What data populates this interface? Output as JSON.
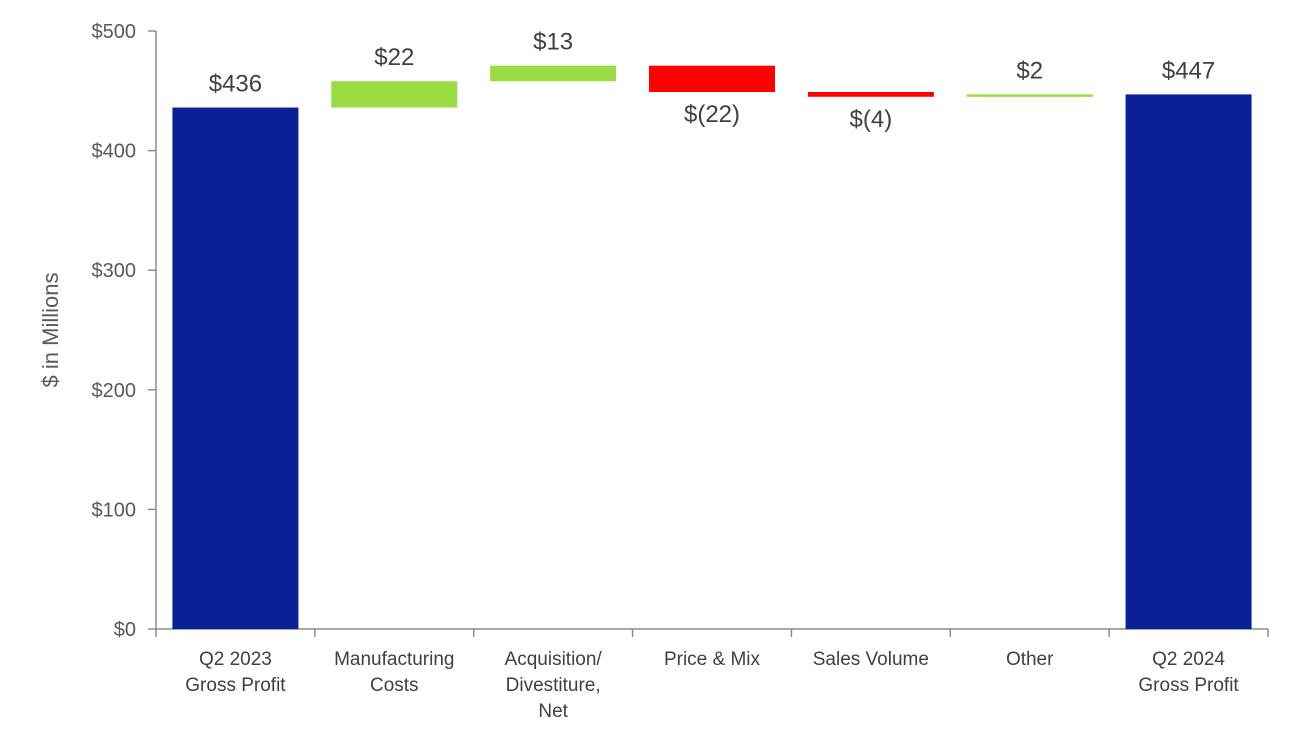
{
  "chart_data": {
    "type": "bar",
    "subtype": "waterfall",
    "title": "",
    "xlabel": "",
    "ylabel": "$ in Millions",
    "ylim": [
      0,
      500
    ],
    "y_ticks": [
      0,
      100,
      200,
      300,
      400,
      500
    ],
    "y_tick_labels": [
      "$0",
      "$100",
      "$200",
      "$300",
      "$400",
      "$500"
    ],
    "grid": false,
    "categories": [
      [
        "Q2 2023",
        "Gross Profit"
      ],
      [
        "Manufacturing",
        "Costs"
      ],
      [
        "Acquisition/",
        "Divestiture,",
        "Net"
      ],
      [
        "Price & Mix"
      ],
      [
        "Sales Volume"
      ],
      [
        "Other"
      ],
      [
        "Q2 2024",
        "Gross Profit"
      ]
    ],
    "bars": [
      {
        "kind": "total",
        "value": 436,
        "label": "$436"
      },
      {
        "kind": "increase",
        "value": 22,
        "label": "$22"
      },
      {
        "kind": "increase",
        "value": 13,
        "label": "$13"
      },
      {
        "kind": "decrease",
        "value": -22,
        "label": "$(22)"
      },
      {
        "kind": "decrease",
        "value": -4,
        "label": "$(4)"
      },
      {
        "kind": "increase",
        "value": 2,
        "label": "$2"
      },
      {
        "kind": "total",
        "value": 447,
        "label": "$447"
      }
    ],
    "colors": {
      "total": "#0a2196",
      "increase": "#9bdc45",
      "decrease": "#ff0000"
    }
  }
}
